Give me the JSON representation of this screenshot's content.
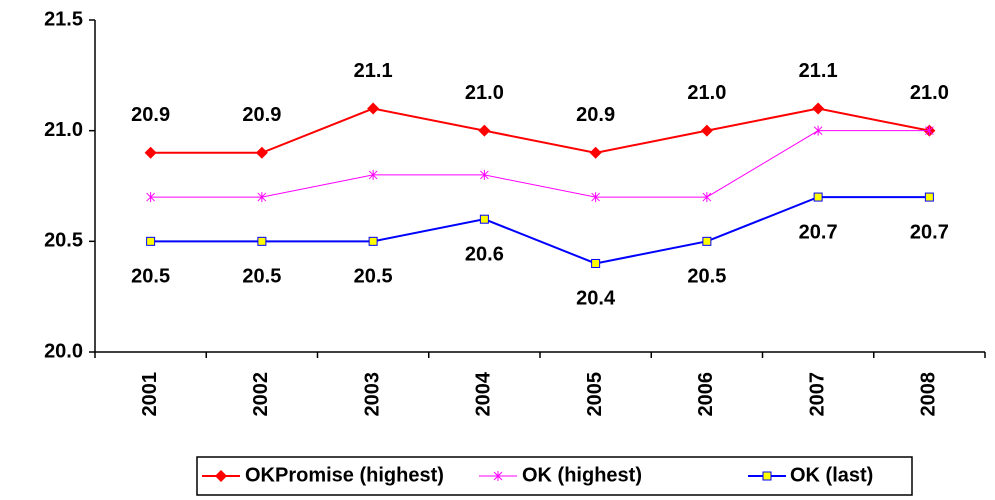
{
  "chart_data": {
    "type": "line",
    "categories": [
      "2001",
      "2002",
      "2003",
      "2004",
      "2005",
      "2006",
      "2007",
      "2008"
    ],
    "series": [
      {
        "name": "OKPromise (highest)",
        "color": "#ff0000",
        "marker": "diamond",
        "label_position": "above",
        "values": [
          20.9,
          20.9,
          21.1,
          21.0,
          20.9,
          21.0,
          21.1,
          21.0
        ],
        "value_labels": [
          "20.9",
          "20.9",
          "21.1",
          "21.0",
          "20.9",
          "21.0",
          "21.1",
          "21.0"
        ]
      },
      {
        "name": "OK (highest)",
        "color": "#ff00ff",
        "marker": "star",
        "values": [
          20.7,
          20.7,
          20.8,
          20.8,
          20.7,
          20.7,
          21.0,
          21.0
        ]
      },
      {
        "name": "OK (last)",
        "color": "#0000ff",
        "marker": "square",
        "marker_fill": "#ffff00",
        "label_position": "below",
        "values": [
          20.5,
          20.5,
          20.5,
          20.6,
          20.4,
          20.5,
          20.7,
          20.7
        ]
      }
    ],
    "ylim": [
      20.0,
      21.5
    ],
    "yticks": [
      {
        "value": 20.0,
        "label": "20.0"
      },
      20.5,
      {
        "value": 21.0,
        "label": "21.0"
      },
      21.5
    ],
    "grid": false,
    "legend": "bottom"
  }
}
